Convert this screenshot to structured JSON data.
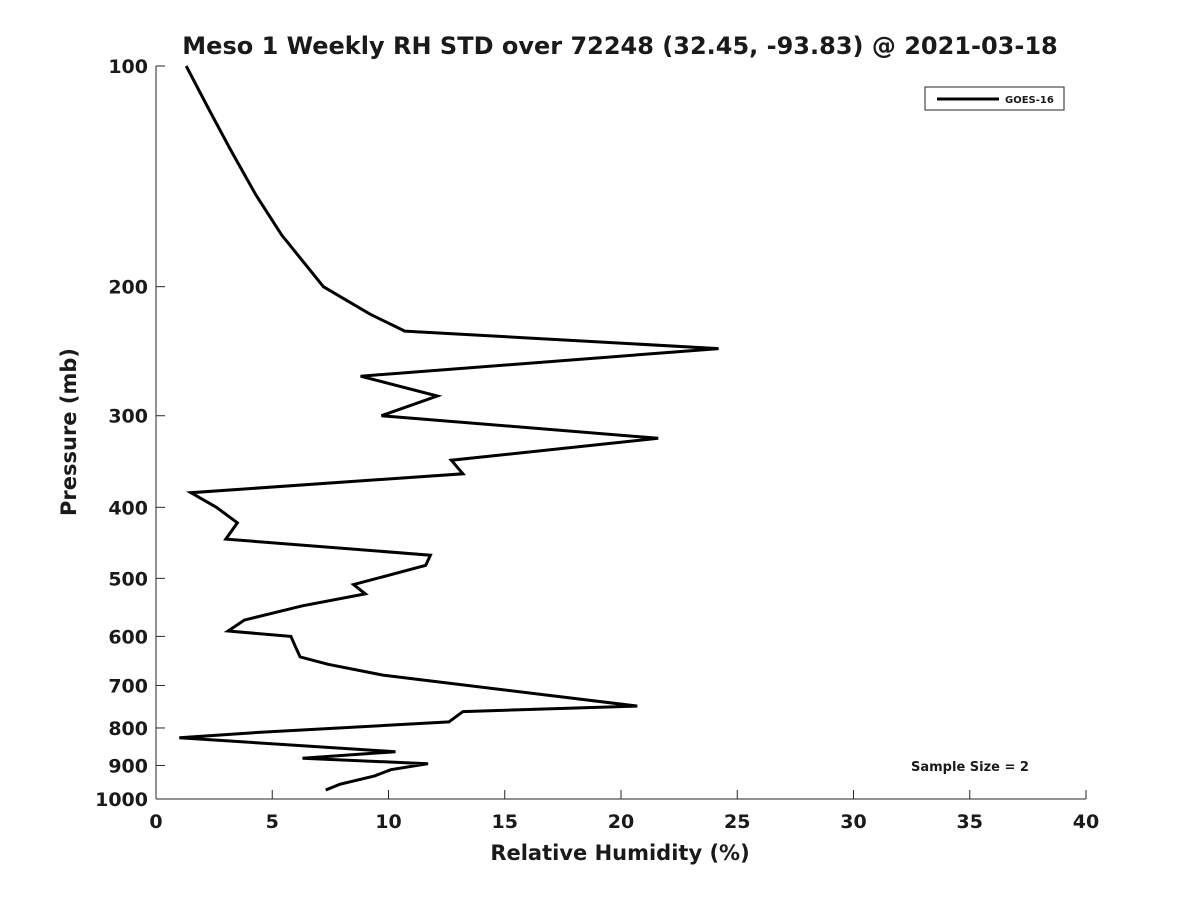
{
  "chart_data": {
    "type": "line",
    "title": "Meso 1 Weekly RH STD over 72248 (32.45, -93.83) @ 2021-03-18",
    "xlabel": "Relative Humidity (%)",
    "ylabel": "Pressure (mb)",
    "xlim": [
      0,
      40
    ],
    "ylim": [
      100,
      1000
    ],
    "y_scale": "log",
    "y_reversed": true,
    "x_ticks": [
      0,
      5,
      10,
      15,
      20,
      25,
      30,
      35,
      40
    ],
    "y_ticks": [
      100,
      200,
      300,
      400,
      500,
      600,
      700,
      800,
      900,
      1000
    ],
    "grid": false,
    "legend_position": "top-right",
    "annotation": "Sample Size = 2",
    "series": [
      {
        "name": "GOES-16",
        "color": "#000000",
        "points": [
          [
            1.3,
            100
          ],
          [
            2.3,
            115
          ],
          [
            3.2,
            130
          ],
          [
            4.3,
            150
          ],
          [
            5.4,
            170
          ],
          [
            7.2,
            200
          ],
          [
            9.2,
            218
          ],
          [
            10.7,
            230
          ],
          [
            24.2,
            243
          ],
          [
            8.8,
            265
          ],
          [
            12.1,
            282
          ],
          [
            9.7,
            300
          ],
          [
            21.6,
            322
          ],
          [
            12.7,
            345
          ],
          [
            13.2,
            360
          ],
          [
            1.5,
            382
          ],
          [
            2.6,
            400
          ],
          [
            3.5,
            420
          ],
          [
            3.0,
            442
          ],
          [
            11.8,
            465
          ],
          [
            11.6,
            480
          ],
          [
            8.5,
            510
          ],
          [
            9.0,
            525
          ],
          [
            6.3,
            545
          ],
          [
            3.8,
            570
          ],
          [
            3.1,
            590
          ],
          [
            5.8,
            600
          ],
          [
            6.0,
            620
          ],
          [
            6.2,
            640
          ],
          [
            7.4,
            655
          ],
          [
            9.8,
            678
          ],
          [
            20.7,
            747
          ],
          [
            13.2,
            760
          ],
          [
            12.6,
            785
          ],
          [
            4.2,
            812
          ],
          [
            1.0,
            825
          ],
          [
            10.3,
            862
          ],
          [
            6.3,
            880
          ],
          [
            11.7,
            895
          ],
          [
            10.1,
            912
          ],
          [
            9.4,
            930
          ],
          [
            7.9,
            955
          ],
          [
            7.3,
            972
          ]
        ]
      }
    ]
  }
}
